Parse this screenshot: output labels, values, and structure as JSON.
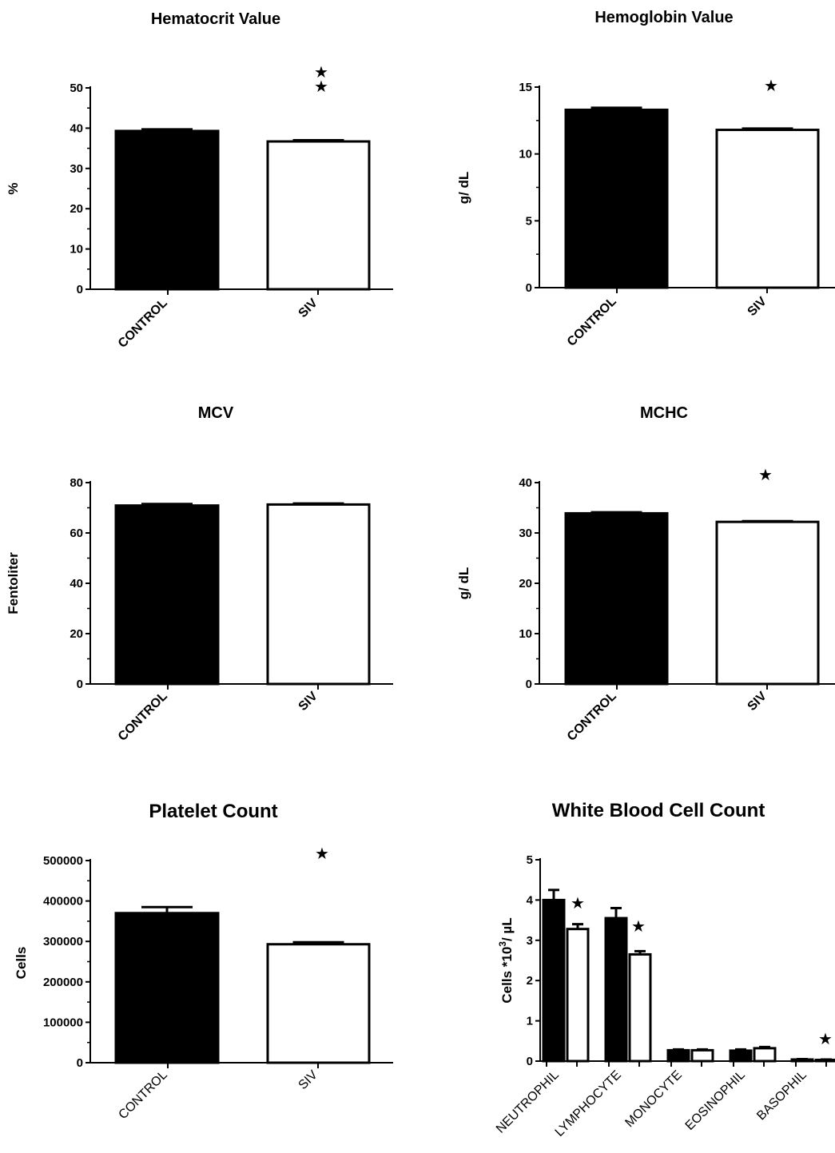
{
  "chart_data": [
    {
      "type": "bar",
      "title": "Hematocrit Value",
      "ylabel": "%",
      "categories": [
        "CONTROL",
        "SIV"
      ],
      "values": [
        39.3,
        36.7
      ],
      "errors": [
        0.4,
        0.3
      ],
      "ylim": [
        0,
        50
      ],
      "yticks": [
        "0",
        "10",
        "20",
        "30",
        "40",
        "50"
      ],
      "significance": [
        "",
        "★★"
      ],
      "bar_colors": [
        "#000000",
        "#ffffff"
      ]
    },
    {
      "type": "bar",
      "title": "Hemoglobin Value",
      "ylabel": "g/ dL",
      "categories": [
        "CONTROL",
        "SIV"
      ],
      "values": [
        13.3,
        11.8
      ],
      "errors": [
        0.15,
        0.1
      ],
      "ylim": [
        0,
        15
      ],
      "yticks": [
        "0",
        "5",
        "10",
        "15"
      ],
      "significance": [
        "",
        "★"
      ],
      "bar_colors": [
        "#000000",
        "#ffffff"
      ]
    },
    {
      "type": "bar",
      "title": "MCV",
      "ylabel": "Fentoliter",
      "categories": [
        "CONTROL",
        "SIV"
      ],
      "values": [
        70.9,
        71.3
      ],
      "errors": [
        0.6,
        0.4
      ],
      "ylim": [
        0,
        80
      ],
      "yticks": [
        "0",
        "20",
        "40",
        "60",
        "80"
      ],
      "significance": [
        "",
        ""
      ],
      "bar_colors": [
        "#000000",
        "#ffffff"
      ]
    },
    {
      "type": "bar",
      "title": "MCHC",
      "ylabel": "g/ dL",
      "categories": [
        "CONTROL",
        "SIV"
      ],
      "values": [
        33.9,
        32.2
      ],
      "errors": [
        0.2,
        0.15
      ],
      "ylim": [
        0,
        40
      ],
      "yticks": [
        "0",
        "10",
        "20",
        "30",
        "40"
      ],
      "significance": [
        "",
        "★"
      ],
      "bar_colors": [
        "#000000",
        "#ffffff"
      ]
    },
    {
      "type": "bar",
      "title": "Platelet Count",
      "ylabel": "Cells",
      "categories": [
        "CONTROL",
        "SIV"
      ],
      "values": [
        370000,
        293000
      ],
      "errors": [
        15000,
        5000
      ],
      "ylim": [
        0,
        500000
      ],
      "yticks": [
        "0",
        "100000",
        "200000",
        "300000",
        "400000",
        "500000"
      ],
      "significance": [
        "",
        "★"
      ],
      "bar_colors": [
        "#000000",
        "#ffffff"
      ]
    },
    {
      "type": "bar",
      "title": "White Blood Cell Count",
      "ylabel": "Cells *10",
      "ylabel_sup": "3",
      "ylabel_suffix": "/ µL",
      "categories": [
        "NEUTROPHIL",
        "LYMPHOCYTE",
        "MONOCYTE",
        "EOSINOPHIL",
        "BASOPHIL"
      ],
      "series": [
        {
          "values": [
            4.0,
            3.55,
            0.27,
            0.26,
            0.04
          ],
          "errors": [
            0.25,
            0.25,
            0.02,
            0.03,
            0.01
          ],
          "color": "#000000"
        },
        {
          "values": [
            3.28,
            2.65,
            0.27,
            0.32,
            0.03
          ],
          "errors": [
            0.12,
            0.08,
            0.02,
            0.03,
            0.01
          ],
          "color": "#ffffff"
        }
      ],
      "ylim": [
        0,
        5
      ],
      "yticks": [
        "0",
        "1",
        "2",
        "3",
        "4",
        "5"
      ],
      "significance": [
        "★",
        "★",
        "",
        "",
        "★"
      ],
      "significance_extra": "★"
    }
  ]
}
